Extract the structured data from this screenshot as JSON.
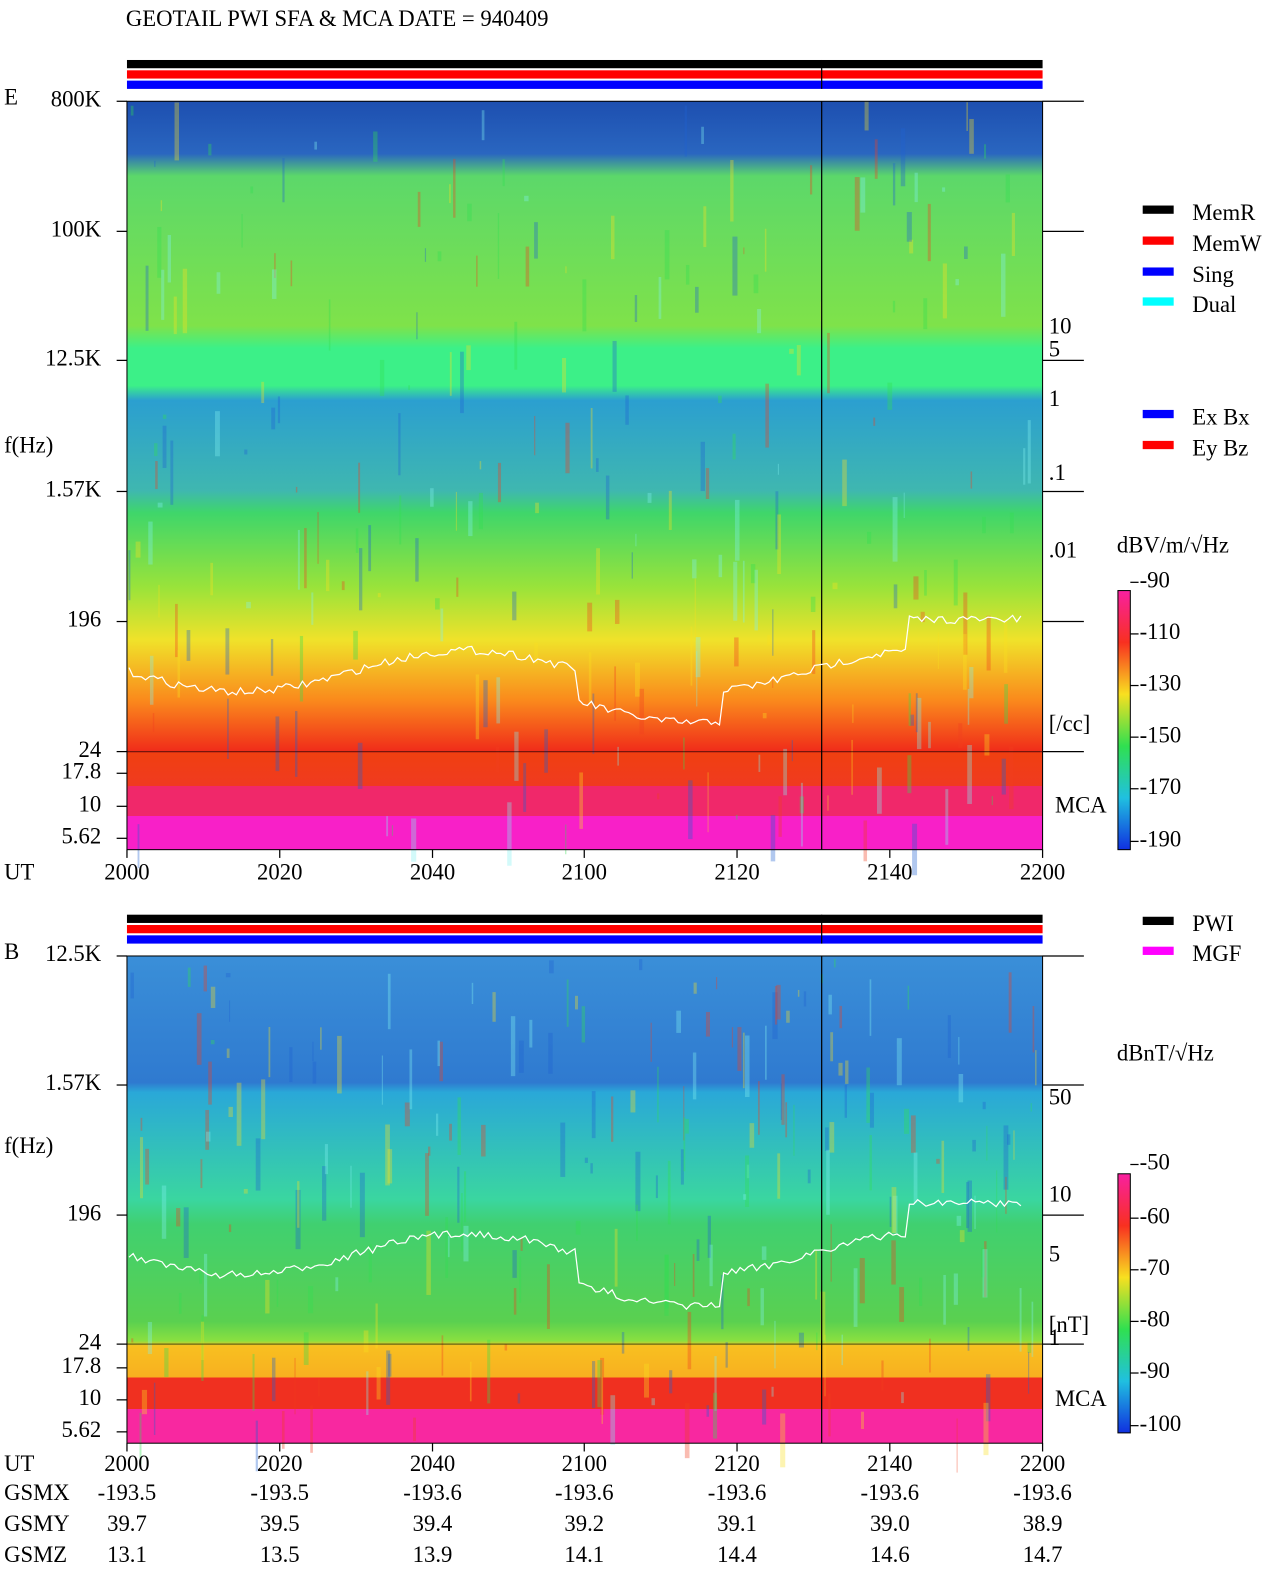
{
  "title": "GEOTAIL  PWI SFA & MCA   DATE = 940409",
  "panels": [
    {
      "label": "E",
      "y_axis_title": "f(Hz)",
      "x_axis_title": "UT",
      "freq_labels": [
        "800K",
        "100K",
        "12.5K",
        "1.57K",
        "196",
        "24",
        "17.8",
        "10",
        "5.62"
      ],
      "time_labels": [
        "2000",
        "2020",
        "2040",
        "2100",
        "2120",
        "2140",
        "2200"
      ],
      "density_labels": [
        "10",
        "5",
        "1",
        ".1",
        ".01",
        "[/cc]"
      ],
      "mca_label": "MCA",
      "legend": [
        "MemR",
        "MemW",
        "Sing",
        "Dual",
        "Ex Bx",
        "Ey Bz"
      ],
      "colorbar_title": "dBV/m/√Hz",
      "colorbar_ticks": [
        "-90",
        "-110",
        "-130",
        "-150",
        "-170",
        "-190"
      ]
    },
    {
      "label": "B",
      "y_axis_title": "f(Hz)",
      "x_axis_title": "UT",
      "freq_labels": [
        "12.5K",
        "1.57K",
        "196",
        "24",
        "17.8",
        "10",
        "5.62"
      ],
      "time_labels": [
        "2000",
        "2020",
        "2040",
        "2100",
        "2120",
        "2140",
        "2200"
      ],
      "density_labels": [
        "50",
        "10",
        "5",
        "1",
        "[nT]"
      ],
      "mca_label": "MCA",
      "legend": [
        "PWI",
        "MGF"
      ],
      "colorbar_title": "dBnT/√Hz",
      "colorbar_ticks": [
        "-50",
        "-60",
        "-70",
        "-80",
        "-90",
        "-100"
      ]
    }
  ],
  "orbit": {
    "rows": [
      {
        "name": "GSMX",
        "values": [
          "-193.5",
          "-193.5",
          "-193.6",
          "-193.6",
          "-193.6",
          "-193.6",
          "-193.6"
        ]
      },
      {
        "name": "GSMY",
        "values": [
          "39.7",
          "39.5",
          "39.4",
          "39.2",
          "39.1",
          "39.0",
          "38.9"
        ]
      },
      {
        "name": "GSMZ",
        "values": [
          "13.1",
          "13.5",
          "13.9",
          "14.1",
          "14.4",
          "14.6",
          "14.7"
        ]
      }
    ]
  }
}
